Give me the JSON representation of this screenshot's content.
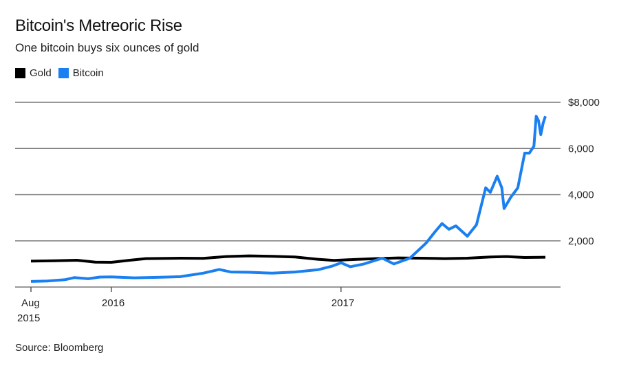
{
  "chart_data": {
    "type": "line",
    "title": "Bitcoin's Metreoric Rise",
    "subtitle": "One bitcoin buys six ounces of gold",
    "source": "Source: Bloomberg",
    "xlabel": "",
    "ylabel": "",
    "ylim": [
      0,
      8000
    ],
    "xlim": [
      2015.65,
      2017.89
    ],
    "yticks": [
      {
        "value": 8000,
        "label": "$8,000"
      },
      {
        "value": 6000,
        "label": "6,000"
      },
      {
        "value": 4000,
        "label": "4,000"
      },
      {
        "value": 2000,
        "label": "2,000"
      }
    ],
    "xticks": [
      {
        "value": 2015.65,
        "label": "Aug",
        "label2": "2015"
      },
      {
        "value": 2016,
        "label": "2016"
      },
      {
        "value": 2017,
        "label": "2017"
      }
    ],
    "grid": true,
    "legend_position": "top-left",
    "series": [
      {
        "name": "Gold",
        "color": "#000000",
        "points": [
          [
            2015.65,
            1120
          ],
          [
            2015.75,
            1140
          ],
          [
            2015.85,
            1160
          ],
          [
            2015.93,
            1080
          ],
          [
            2016.0,
            1070
          ],
          [
            2016.08,
            1160
          ],
          [
            2016.15,
            1230
          ],
          [
            2016.3,
            1250
          ],
          [
            2016.4,
            1240
          ],
          [
            2016.5,
            1320
          ],
          [
            2016.6,
            1350
          ],
          [
            2016.7,
            1330
          ],
          [
            2016.8,
            1300
          ],
          [
            2016.9,
            1200
          ],
          [
            2016.97,
            1150
          ],
          [
            2017.05,
            1190
          ],
          [
            2017.15,
            1230
          ],
          [
            2017.25,
            1260
          ],
          [
            2017.35,
            1250
          ],
          [
            2017.45,
            1230
          ],
          [
            2017.55,
            1250
          ],
          [
            2017.65,
            1300
          ],
          [
            2017.72,
            1320
          ],
          [
            2017.8,
            1280
          ],
          [
            2017.89,
            1290
          ]
        ]
      },
      {
        "name": "Bitcoin",
        "color": "#1a7ff0",
        "points": [
          [
            2015.65,
            240
          ],
          [
            2015.72,
            260
          ],
          [
            2015.8,
            320
          ],
          [
            2015.84,
            410
          ],
          [
            2015.9,
            360
          ],
          [
            2015.95,
            430
          ],
          [
            2016.0,
            440
          ],
          [
            2016.1,
            400
          ],
          [
            2016.2,
            420
          ],
          [
            2016.3,
            450
          ],
          [
            2016.4,
            600
          ],
          [
            2016.47,
            760
          ],
          [
            2016.52,
            650
          ],
          [
            2016.6,
            640
          ],
          [
            2016.7,
            600
          ],
          [
            2016.8,
            650
          ],
          [
            2016.9,
            750
          ],
          [
            2016.96,
            900
          ],
          [
            2017.0,
            1050
          ],
          [
            2017.04,
            880
          ],
          [
            2017.1,
            1000
          ],
          [
            2017.18,
            1250
          ],
          [
            2017.23,
            1000
          ],
          [
            2017.3,
            1250
          ],
          [
            2017.37,
            1900
          ],
          [
            2017.41,
            2400
          ],
          [
            2017.44,
            2750
          ],
          [
            2017.47,
            2500
          ],
          [
            2017.5,
            2650
          ],
          [
            2017.55,
            2200
          ],
          [
            2017.59,
            2700
          ],
          [
            2017.63,
            4300
          ],
          [
            2017.65,
            4100
          ],
          [
            2017.68,
            4800
          ],
          [
            2017.7,
            4300
          ],
          [
            2017.71,
            3400
          ],
          [
            2017.74,
            3900
          ],
          [
            2017.77,
            4300
          ],
          [
            2017.8,
            5800
          ],
          [
            2017.82,
            5800
          ],
          [
            2017.84,
            6100
          ],
          [
            2017.85,
            7400
          ],
          [
            2017.86,
            7200
          ],
          [
            2017.87,
            6600
          ],
          [
            2017.88,
            7100
          ],
          [
            2017.89,
            7400
          ]
        ]
      }
    ]
  }
}
